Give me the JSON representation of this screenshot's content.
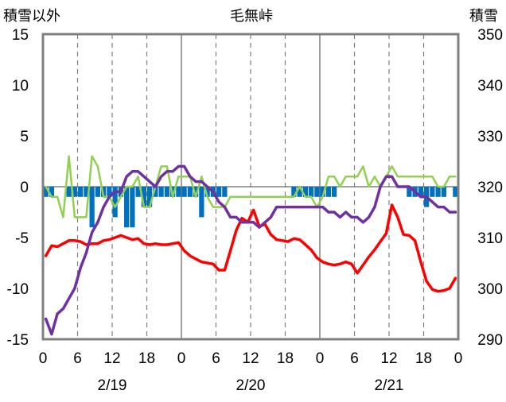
{
  "chart_data": {
    "type": "line",
    "title": "毛無峠",
    "ylabel_left": "積雪以外",
    "ylabel_right": "積雪",
    "x_ticks": [
      "0",
      "6",
      "12",
      "18",
      "0",
      "6",
      "12",
      "18",
      "0",
      "6",
      "12",
      "18",
      "0"
    ],
    "date_labels": [
      "2/19",
      "2/20",
      "2/21"
    ],
    "y_left_ticks": [
      "15",
      "10",
      "5",
      "0",
      "-5",
      "-10",
      "-15"
    ],
    "y_right_ticks": [
      "350",
      "340",
      "330",
      "320",
      "310",
      "300",
      "290"
    ],
    "ylim_left": [
      -15,
      15
    ],
    "ylim_right": [
      290,
      350
    ],
    "grid": "dashed vertical every 6h, solid at day boundaries, solid horizontal at 0",
    "hours": 72,
    "series": [
      {
        "axis": "left",
        "kind": "bar",
        "color": "#0070C0",
        "values": [
          -1,
          -1,
          0,
          0,
          -1,
          -1,
          -1,
          -1,
          -4,
          -1,
          -1,
          -1,
          -3,
          -1,
          -4,
          -4,
          -1,
          -2,
          -2,
          -1,
          -1,
          -1,
          -1,
          -1,
          -1,
          -1,
          -1,
          -3,
          -1,
          -1,
          -1,
          -1,
          0,
          0,
          0,
          0,
          0,
          0,
          0,
          0,
          0,
          0,
          0,
          -1,
          -1,
          -1,
          -1,
          -1,
          -1,
          -1,
          -1,
          0,
          0,
          0,
          0,
          0,
          0,
          0,
          0,
          0,
          0,
          0,
          0,
          -1,
          -1,
          -1,
          -2,
          -1,
          -1,
          -1,
          0,
          -1
        ]
      },
      {
        "axis": "left",
        "kind": "line",
        "color": "#FF0000",
        "values": [
          -6.8,
          -5.8,
          -5.9,
          -5.6,
          -5.3,
          -5.3,
          -5.4,
          -5.7,
          -5.6,
          -5.6,
          -5.3,
          -5.2,
          -5.0,
          -4.8,
          -5.0,
          -5.2,
          -5.1,
          -5.6,
          -5.7,
          -5.6,
          -5.7,
          -5.7,
          -5.6,
          -5.5,
          -6.3,
          -6.8,
          -7.1,
          -7.4,
          -7.5,
          -7.6,
          -8.2,
          -8.2,
          -6.3,
          -4.3,
          -3.1,
          -3.5,
          -2.3,
          -3.9,
          -3.7,
          -4.7,
          -5.2,
          -5.3,
          -5.4,
          -5.1,
          -5.2,
          -5.7,
          -6.2,
          -7.0,
          -7.4,
          -7.6,
          -7.7,
          -7.6,
          -7.4,
          -7.6,
          -8.5,
          -7.7,
          -6.9,
          -6.2,
          -5.4,
          -4.6,
          -1.8,
          -3.0,
          -4.7,
          -4.8,
          -5.3,
          -7.4,
          -9.3,
          -10.1,
          -10.3,
          -10.2,
          -10.0,
          -9.0
        ]
      },
      {
        "axis": "left",
        "kind": "line",
        "color": "#92D050",
        "values": [
          0,
          -1,
          -1,
          -3,
          3,
          -3,
          -3,
          -3,
          3,
          2,
          -1,
          -1,
          -2,
          -1,
          0,
          0,
          1,
          -2,
          -2,
          0,
          2,
          2,
          -1,
          1,
          1,
          1,
          -1,
          1,
          -1,
          -2,
          -2,
          -2,
          -1,
          -1,
          -1,
          -1,
          -1,
          -1,
          -1,
          -1,
          -1,
          -1,
          -1,
          -1,
          0,
          -1,
          -1,
          -2,
          -1,
          1,
          1,
          0,
          1,
          1,
          1,
          2,
          0,
          1,
          0,
          1,
          2,
          1,
          1,
          1,
          1,
          1,
          1,
          1,
          0,
          0,
          1,
          1
        ]
      },
      {
        "axis": "right",
        "kind": "line",
        "color": "#7030A0",
        "values": [
          294,
          291,
          295,
          296,
          298,
          300,
          304,
          307,
          311,
          313,
          316,
          318,
          319,
          319,
          322,
          323,
          323,
          322,
          321,
          320,
          322,
          323,
          323,
          324,
          324,
          322,
          321,
          321,
          320,
          319,
          317,
          316,
          314,
          314,
          313,
          313,
          313,
          312,
          313,
          314,
          316,
          316,
          316,
          316,
          316,
          316,
          316,
          316,
          316,
          315,
          315,
          314,
          315,
          314,
          314,
          313,
          314,
          316,
          320,
          322,
          322,
          320,
          320,
          320,
          319,
          318,
          318,
          317,
          316,
          316,
          315,
          315
        ]
      }
    ]
  }
}
